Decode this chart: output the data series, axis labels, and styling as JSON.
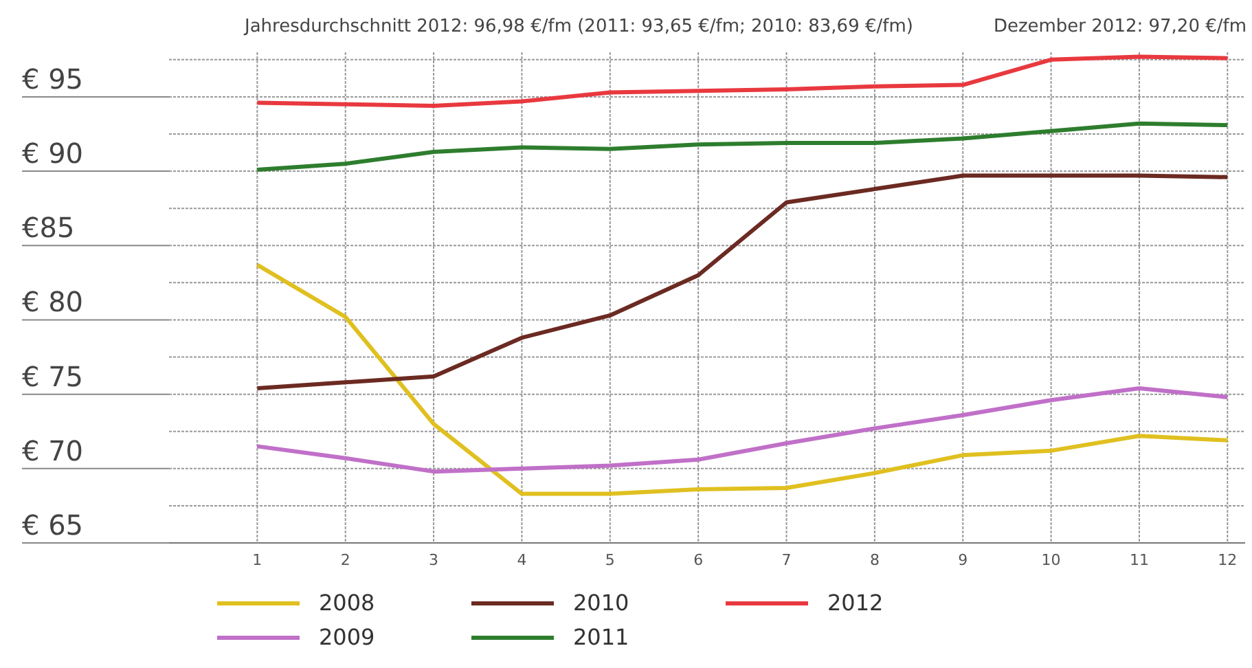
{
  "chart_data": {
    "type": "line",
    "annotations": [
      "Jahresdurchschnitt 2012: 96,98 €/fm (2011: 93,65 €/fm; 2010: 83,69 €/fm)",
      "Dezember 2012: 97,20 €/fm"
    ],
    "x": [
      1,
      2,
      3,
      4,
      5,
      6,
      7,
      8,
      9,
      10,
      11,
      12
    ],
    "xlim": [
      0,
      12.2
    ],
    "xticks": [
      1,
      2,
      3,
      4,
      5,
      6,
      7,
      8,
      9,
      10,
      11,
      12
    ],
    "ylim": [
      65,
      98
    ],
    "yticks": [
      {
        "value": 65,
        "label": "€ 65"
      },
      {
        "value": 67.5,
        "label": null
      },
      {
        "value": 70,
        "label": "€ 70"
      },
      {
        "value": 72.5,
        "label": null
      },
      {
        "value": 75,
        "label": "€ 75"
      },
      {
        "value": 77.5,
        "label": null
      },
      {
        "value": 80,
        "label": "€ 80"
      },
      {
        "value": 82.5,
        "label": null
      },
      {
        "value": 85,
        "label": "€85"
      },
      {
        "value": 87.5,
        "label": null
      },
      {
        "value": 90,
        "label": "€ 90"
      },
      {
        "value": 92.5,
        "label": null
      },
      {
        "value": 95,
        "label": "€ 95"
      },
      {
        "value": 97.5,
        "label": null
      }
    ],
    "grid": true,
    "legend": "bottom",
    "marker": "none",
    "line_style": "solid",
    "series": [
      {
        "name": "2008",
        "color": "#e0c020",
        "values": [
          83.7,
          80.2,
          73.0,
          68.3,
          68.3,
          68.6,
          68.7,
          69.7,
          70.9,
          71.2,
          72.2,
          71.9
        ]
      },
      {
        "name": "2009",
        "color": "#c070c8",
        "values": [
          71.5,
          70.7,
          69.8,
          70.0,
          70.2,
          70.6,
          71.7,
          72.7,
          73.6,
          74.6,
          75.4,
          74.8
        ]
      },
      {
        "name": "2010",
        "color": "#6b2a22",
        "values": [
          75.4,
          75.8,
          76.2,
          78.8,
          80.3,
          83.0,
          87.9,
          88.8,
          89.7,
          89.7,
          89.7,
          89.6
        ]
      },
      {
        "name": "2011",
        "color": "#2e7d2e",
        "values": [
          90.1,
          90.5,
          91.3,
          91.6,
          91.5,
          91.8,
          91.9,
          91.9,
          92.2,
          92.7,
          93.2,
          93.1
        ]
      },
      {
        "name": "2012",
        "color": "#e8393f",
        "values": [
          94.6,
          94.5,
          94.4,
          94.7,
          95.3,
          95.4,
          95.5,
          95.7,
          95.8,
          97.5,
          97.7,
          97.6
        ]
      }
    ]
  }
}
